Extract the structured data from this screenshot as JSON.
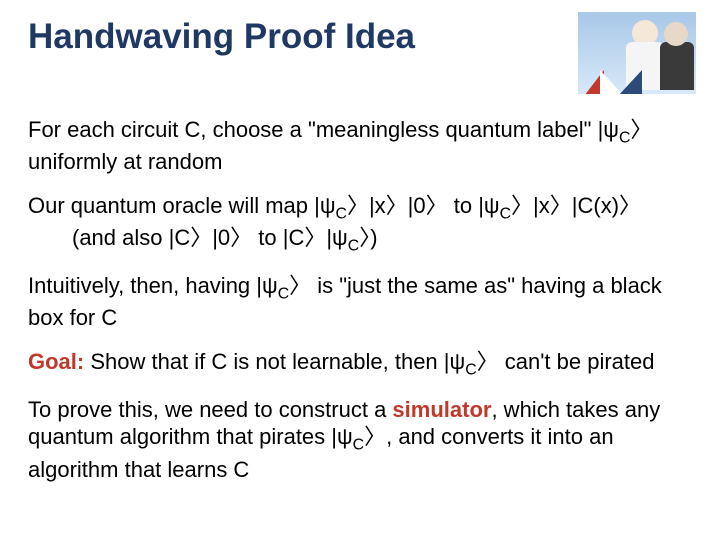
{
  "title": "Handwaving Proof Idea",
  "paragraphs": {
    "p1a": "For each circuit C, choose a \"meaningless quantum label\" |ψ",
    "p1b": "C",
    "p1c": "〉 uniformly at random",
    "p2a": "Our quantum oracle will map |ψ",
    "p2b": "C",
    "p2c": "〉|x〉|0〉 to |ψ",
    "p2d": "C",
    "p2e": "〉|x〉|C(x)〉",
    "p2f": "(and also |C〉|0〉 to |C〉|ψ",
    "p2g": "C",
    "p2h": "〉)",
    "p3a": "Intuitively, then, having |ψ",
    "p3b": "C",
    "p3c": "〉 is \"just the same as\" having a black box for C",
    "goal_label": "Goal:",
    "p4a": " Show that if C is not learnable, then |ψ",
    "p4b": "C",
    "p4c": "〉 can't be pirated",
    "p5a": "To prove this, we need to construct a ",
    "sim_label": "simulator",
    "p5b": ", which takes any quantum algorithm that pirates |ψ",
    "p5c": "C",
    "p5d": "〉, and converts it into an algorithm that learns C"
  },
  "colors": {
    "title_color": "#1f3864",
    "accent_color": "#c0392b",
    "text_color": "#000000",
    "background": "#ffffff"
  },
  "typography": {
    "title_fontsize": 35,
    "body_fontsize": 22,
    "font_family": "Arial"
  }
}
